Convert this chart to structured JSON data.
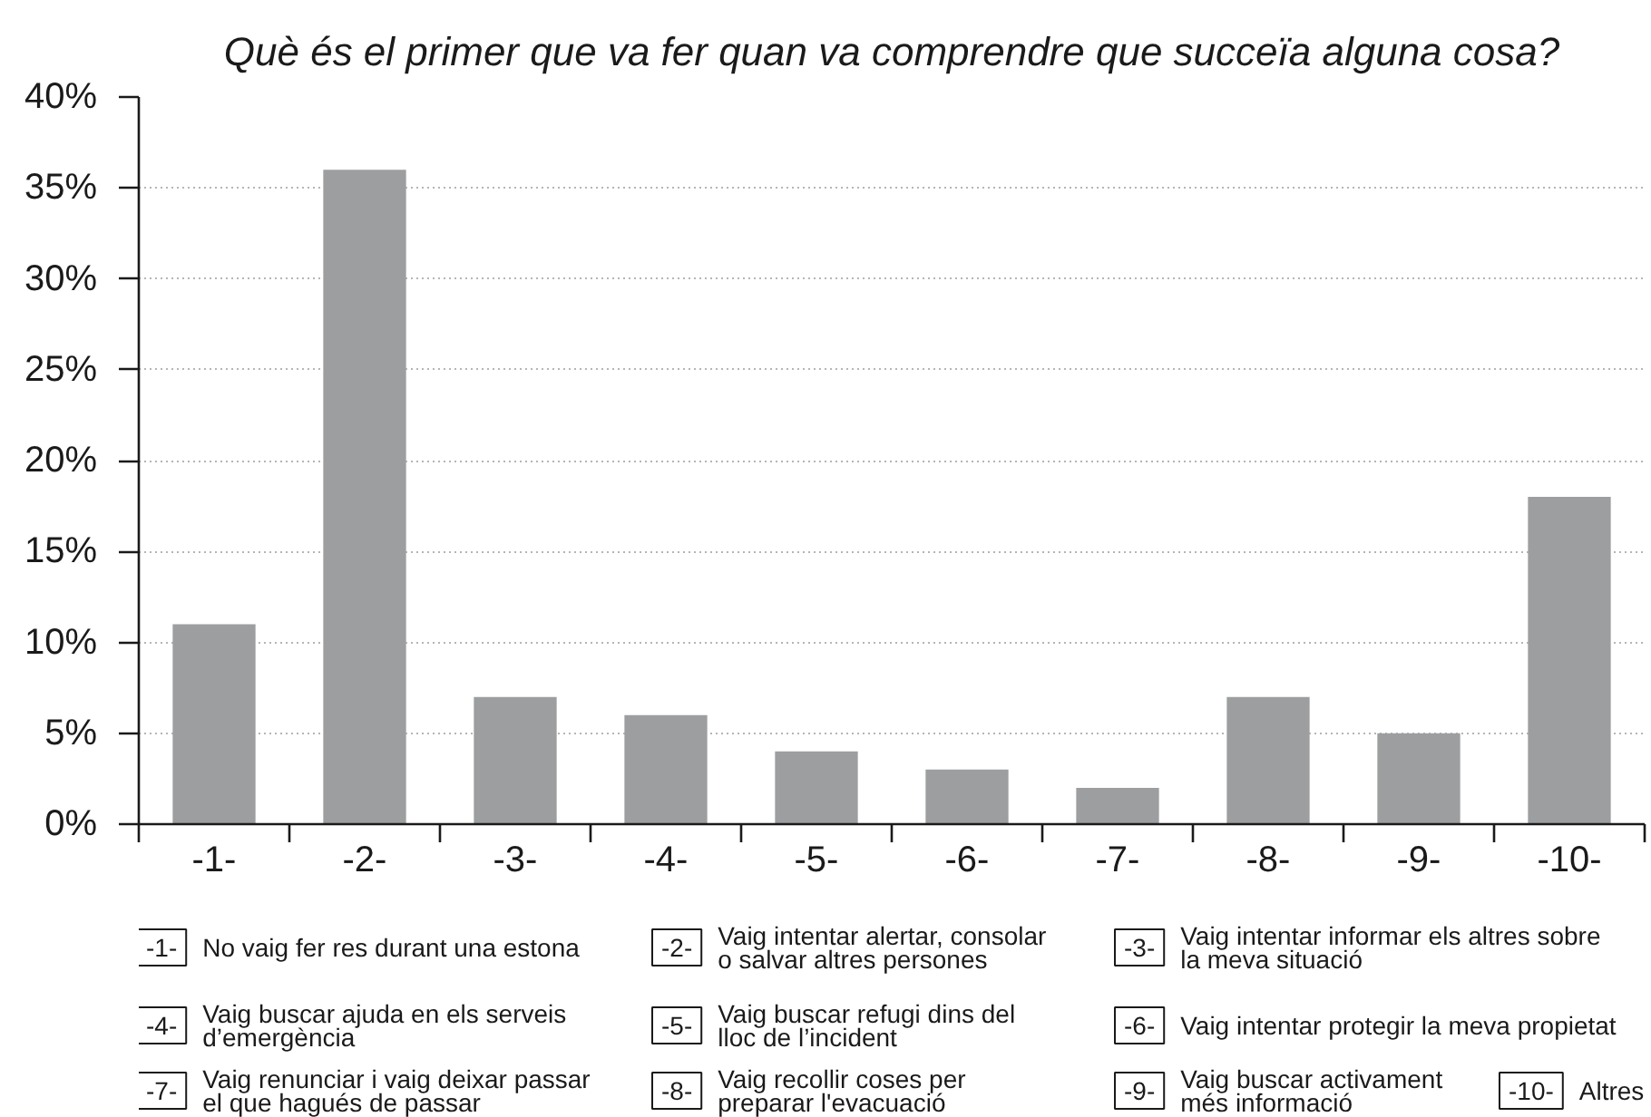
{
  "chart_data": {
    "type": "bar",
    "title": "Què és el primer que va fer quan va comprendre que succeïa alguna cosa?",
    "categories": [
      "-1-",
      "-2-",
      "-3-",
      "-4-",
      "-5-",
      "-6-",
      "-7-",
      "-8-",
      "-9-",
      "-10-"
    ],
    "values": [
      11,
      36,
      7,
      6,
      4,
      3,
      2,
      7,
      5,
      18
    ],
    "color": "#9d9ea0",
    "ylim": [
      0,
      40
    ],
    "yticks": [
      {
        "value": 0,
        "label": "0%"
      },
      {
        "value": 5,
        "label": "5%"
      },
      {
        "value": 10,
        "label": "10%"
      },
      {
        "value": 15,
        "label": "15%"
      },
      {
        "value": 20,
        "label": "20%"
      },
      {
        "value": 25,
        "label": "25%"
      },
      {
        "value": 30,
        "label": "30%"
      },
      {
        "value": 35,
        "label": "35%"
      },
      {
        "value": 40,
        "label": "40%"
      }
    ],
    "grid": "y",
    "annotations": [
      "No vaig fer res durant una estona",
      "Vaig intentar alertar, consolar\no salvar altres persones",
      "Vaig intentar informar els altres sobre\nla meva situació",
      "Vaig buscar ajuda en els serveis\nd’emergència",
      "Vaig buscar refugi dins del\nlloc de l’incident",
      "Vaig intentar protegir la meva propietat",
      "Vaig renunciar i vaig deixar passar\nel que hagués de passar",
      "Vaig recollir coses per\npreparar l'evacuació",
      "Vaig buscar activament\nmés informació",
      "Altres"
    ]
  }
}
